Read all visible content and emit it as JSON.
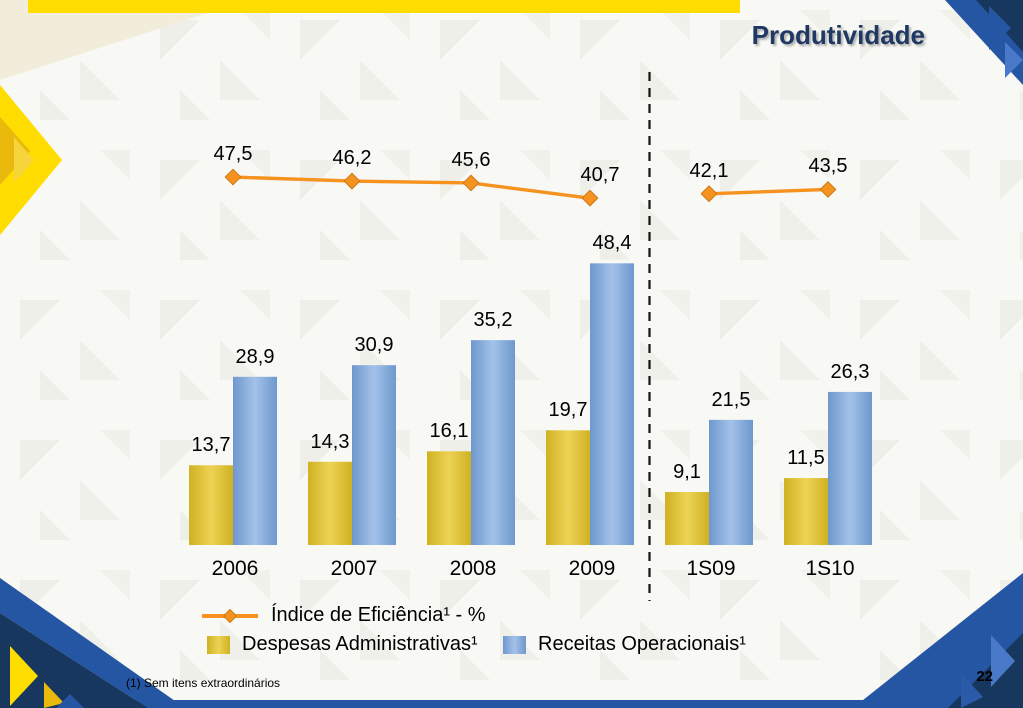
{
  "slide": {
    "title": "Produtividade",
    "page_number": "22",
    "footnote": "(1) Sem itens extraordinários"
  },
  "colors": {
    "line": "#F6921E",
    "line_marker_border": "#C8791B",
    "bar_yellow_light": "#EDD355",
    "bar_yellow_dark": "#CFB122",
    "bar_blue_light": "#A3C2E9",
    "bar_blue_dark": "#6E98CD",
    "divider": "#111111",
    "title": "#1F3864",
    "accent_yellow": "#FFDD00",
    "accent_royal": "#2456A4",
    "accent_navy": "#17375E",
    "cream": "#F2EDDB",
    "background": "#F8F8F4"
  },
  "chart_data": {
    "type": "combo-bar-line",
    "categories": [
      "2006",
      "2007",
      "2008",
      "2009",
      "1S09",
      "1S10"
    ],
    "separator_after_index": 3,
    "series": [
      {
        "name": "Índice de Eficiência¹ - %",
        "type": "line",
        "values": [
          47.5,
          46.2,
          45.6,
          40.7,
          42.1,
          43.5
        ],
        "labels": [
          "47,5",
          "46,2",
          "45,6",
          "40,7",
          "42,1",
          "43,5"
        ]
      },
      {
        "name": "Despesas Administrativas¹",
        "type": "bar",
        "values": [
          13.7,
          14.3,
          16.1,
          19.7,
          9.1,
          11.5
        ],
        "labels": [
          "13,7",
          "14,3",
          "16,1",
          "19,7",
          "9,1",
          "11,5"
        ]
      },
      {
        "name": "Receitas Operacionais¹",
        "type": "bar",
        "values": [
          28.9,
          30.9,
          35.2,
          48.4,
          21.5,
          26.3
        ],
        "labels": [
          "28,9",
          "30,9",
          "35,2",
          "48,4",
          "21,5",
          "26,3"
        ]
      }
    ],
    "value_format": "decimal-comma",
    "grid": false,
    "axes_visible": false,
    "legend_position": "bottom-left"
  }
}
